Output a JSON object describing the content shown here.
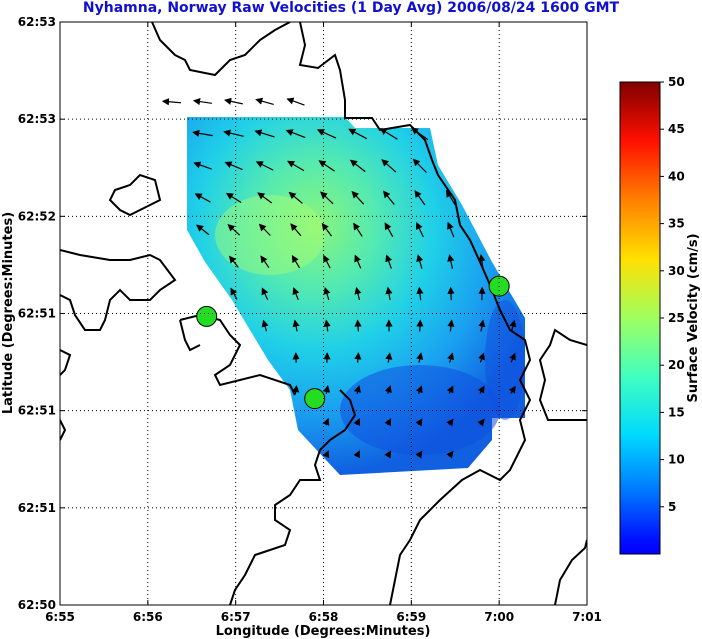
{
  "chart_data": {
    "type": "heatmap",
    "title": "Nyhamna, Norway Raw Velocities (1 Day Avg) 2006/08/24 1600 GMT",
    "xlabel": "Longitude (Degrees:Minutes)",
    "ylabel": "Latitude (Degrees:Minutes)",
    "x_ticks": [
      "6:55",
      "6:56",
      "6:57",
      "6:58",
      "6:59",
      "7:00",
      "7:01"
    ],
    "y_ticks": [
      "62:53",
      "62:53",
      "62:52",
      "62:51",
      "62:51",
      "62:51",
      "62:50"
    ],
    "grid": true,
    "colorbar": {
      "label": "Surface Velocity (cm/s)",
      "ticks": [
        "5",
        "10",
        "15",
        "20",
        "25",
        "30",
        "35",
        "40",
        "45",
        "50"
      ],
      "range": [
        0,
        50
      ],
      "colormap": "jet"
    },
    "markers": [
      {
        "name": "site-west",
        "lon_min": 56.67,
        "lat_frac": 0.495,
        "color": "#22dd22"
      },
      {
        "name": "site-south",
        "lon_min": 57.9,
        "lat_frac": 0.354,
        "color": "#22dd22"
      },
      {
        "name": "site-east",
        "lon_min": 60.0,
        "lat_frac": 0.547,
        "color": "#22dd22"
      }
    ]
  }
}
